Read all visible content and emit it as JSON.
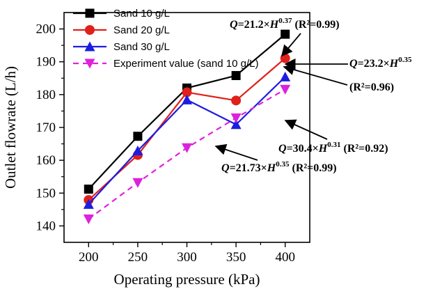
{
  "chart_data": {
    "type": "line",
    "xlabel": "Operating pressure (kPa)",
    "ylabel": "Outlet flowrate (L/h)",
    "x": [
      200,
      250,
      300,
      350,
      400
    ],
    "xlim": [
      175,
      425
    ],
    "ylim": [
      135,
      205
    ],
    "xticks": [
      200,
      250,
      300,
      350,
      400
    ],
    "yticks": [
      140,
      150,
      160,
      170,
      180,
      190,
      200
    ],
    "grid": false,
    "legend_position": "top-left",
    "series": [
      {
        "name": "Sand 10 g/L",
        "values": [
          151.2,
          167.3,
          182.0,
          185.8,
          198.4
        ],
        "color": "#000000",
        "marker": "square",
        "dashed": false
      },
      {
        "name": "Sand 20 g/L",
        "values": [
          147.9,
          161.6,
          180.7,
          178.2,
          191.1
        ],
        "color": "#e0201a",
        "marker": "circle",
        "dashed": false
      },
      {
        "name": "Sand 30 g/L",
        "values": [
          146.6,
          162.9,
          178.4,
          170.9,
          185.4
        ],
        "color": "#1d1de0",
        "marker": "triangle-up",
        "dashed": false
      },
      {
        "name": "Experiment value (sand 10 g/L)",
        "values": [
          142.1,
          153.2,
          163.8,
          172.9,
          181.6
        ],
        "color": "#dd22dd",
        "marker": "triangle-down",
        "dashed": true
      }
    ],
    "annotations": [
      {
        "prefix": "Q",
        "mid": "=21.2×",
        "var": "H",
        "exp": "0.37",
        "tail": " (R²=0.99)",
        "target_x": 400,
        "target_y": 198.4
      },
      {
        "prefix": "Q",
        "mid": "=23.2×",
        "var": "H",
        "exp": "0.35",
        "tail": "",
        "target_x": 400,
        "target_y": 191.1
      },
      {
        "prefix": "",
        "mid": "",
        "var": "",
        "exp": "",
        "tail": "(R²=0.96)",
        "target_x": 400,
        "target_y": 191.1
      },
      {
        "prefix": "Q",
        "mid": "=30.4×",
        "var": "H",
        "exp": "0.31",
        "tail": "  (R²=0.92)",
        "target_x": 350,
        "target_y": 170.9
      },
      {
        "prefix": "Q",
        "mid": "=21.73×",
        "var": "H",
        "exp": "0.35",
        "tail": "  (R²=0.99)",
        "target_x": 300,
        "target_y": 163.8
      }
    ]
  }
}
